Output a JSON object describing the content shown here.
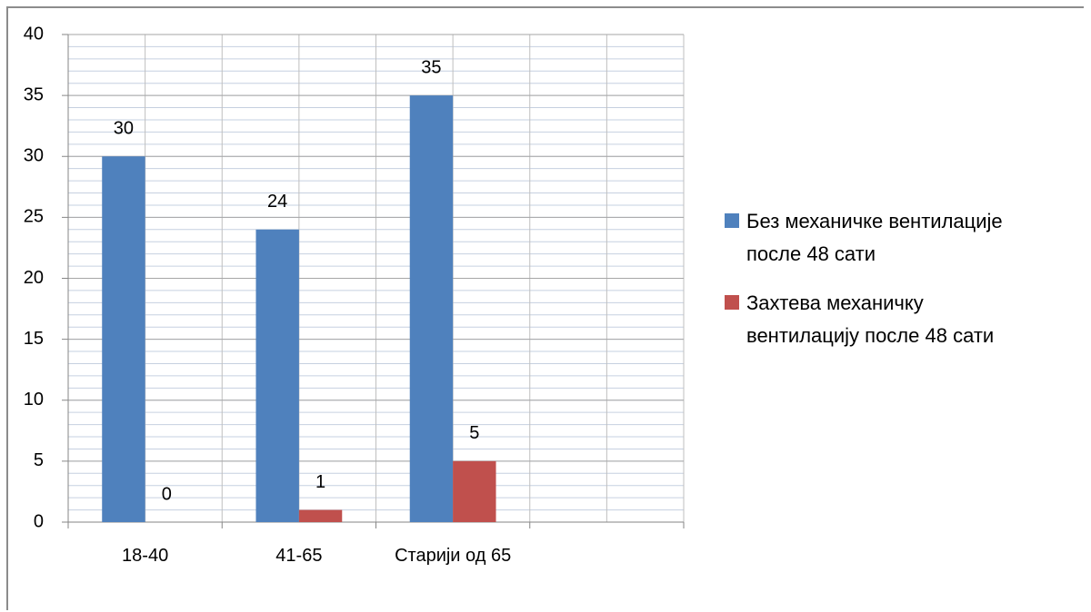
{
  "chart_data": {
    "type": "bar",
    "categories": [
      "18-40",
      "41-65",
      "Старији од 65",
      null
    ],
    "series": [
      {
        "name": "Без механичке вентилације после 48 сати",
        "color": "#4f81bd",
        "values": [
          30,
          24,
          35,
          null
        ]
      },
      {
        "name": "Захтева механичку вентилацију после 48 сати",
        "color": "#c0504d",
        "values": [
          0,
          1,
          5,
          null
        ]
      }
    ],
    "ylim": [
      0,
      40
    ],
    "yticks": [
      0,
      5,
      10,
      15,
      20,
      25,
      30,
      35,
      40
    ],
    "grid": true,
    "minor_ystep": 1,
    "legend": "right"
  }
}
